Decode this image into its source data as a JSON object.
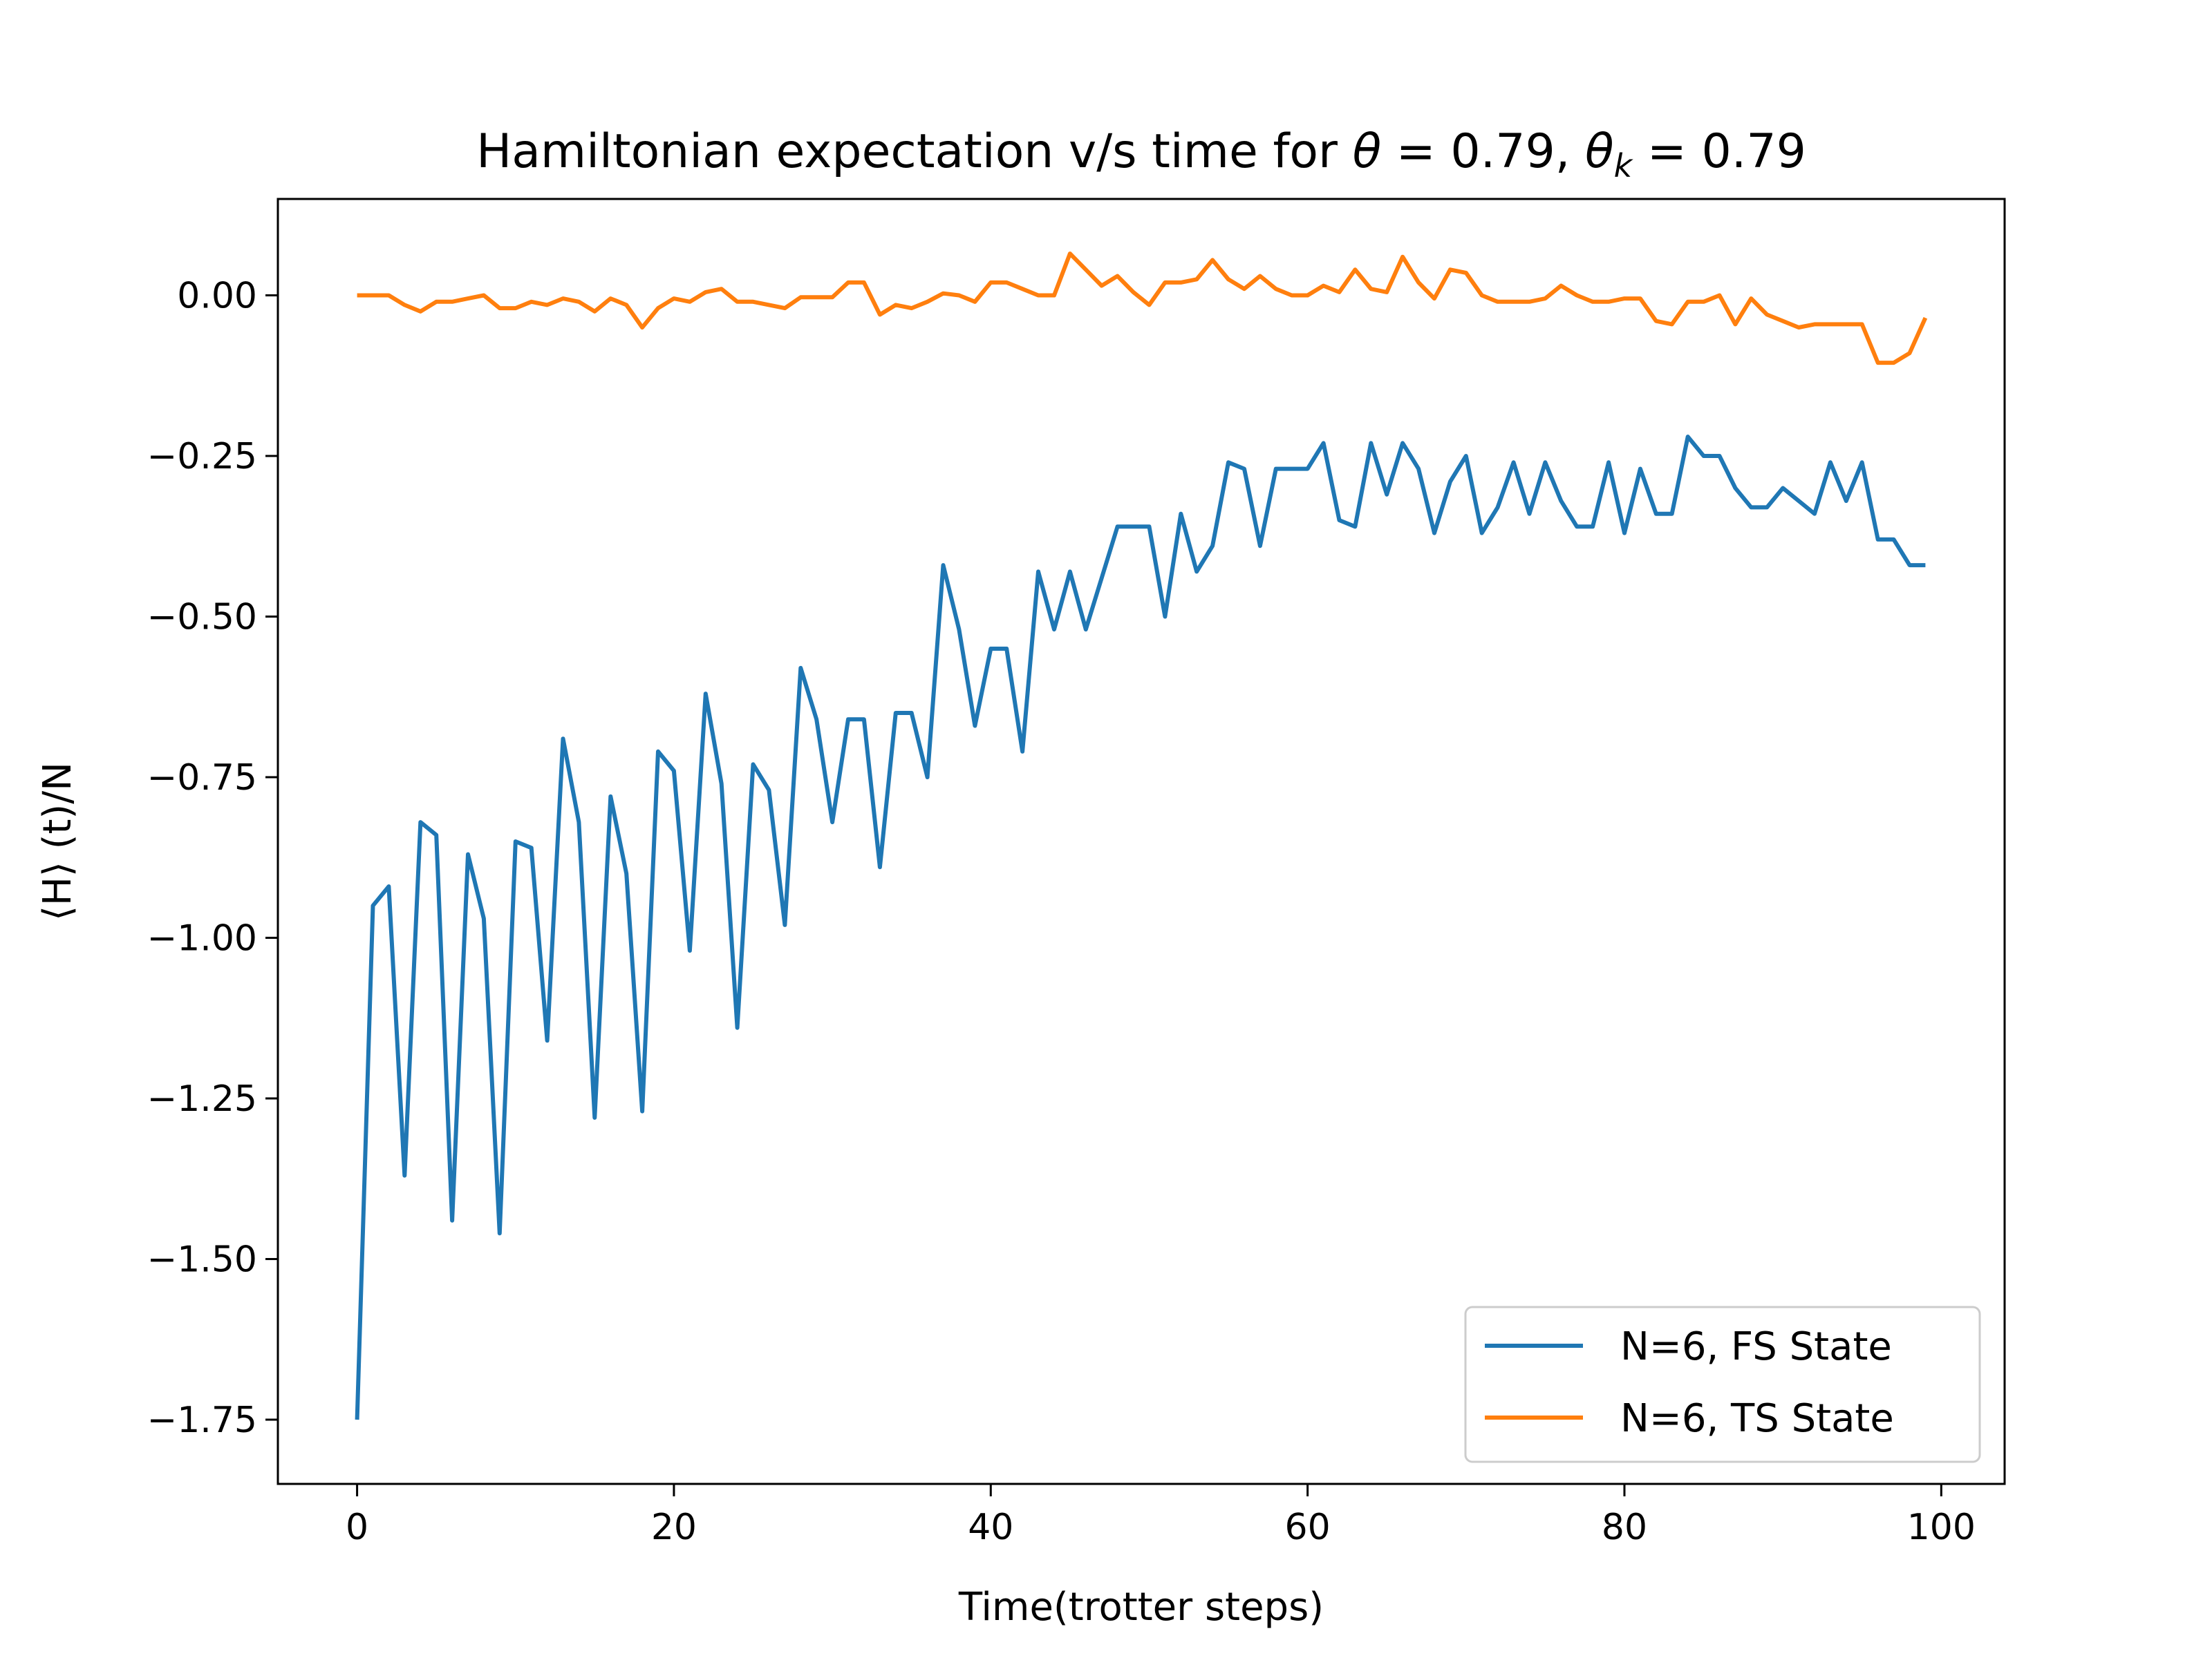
{
  "chart_data": {
    "type": "line",
    "title": "Hamiltonian expectation v/s time for θ = 0.79,  θk = 0.79",
    "title_parts": {
      "prefix": "Hamiltonian expectation v/s time for ",
      "theta": "θ",
      "eq1": " = 0.79,  ",
      "theta2": "θ",
      "subscript": "k",
      "eq2": " = 0.79"
    },
    "xlabel": "Time(trotter steps)",
    "ylabel": "⟨H⟩ (t)/N",
    "xlim": [
      -5,
      104
    ],
    "ylim": [
      -1.85,
      0.15
    ],
    "xticks": [
      0,
      20,
      40,
      60,
      80,
      100
    ],
    "yticks": [
      0.0,
      -0.25,
      -0.5,
      -0.75,
      -1.0,
      -1.25,
      -1.5,
      -1.75
    ],
    "ytick_labels": [
      "0.00",
      "−0.25",
      "−0.50",
      "−0.75",
      "−1.00",
      "−1.25",
      "−1.50",
      "−1.75"
    ],
    "xtick_labels": [
      "0",
      "20",
      "40",
      "60",
      "80",
      "100"
    ],
    "grid": false,
    "legend_position": "lower-right",
    "series": [
      {
        "name": "N=6, FS State",
        "color": "#1f77b4",
        "x": [
          0,
          1,
          2,
          3,
          4,
          5,
          6,
          7,
          8,
          9,
          10,
          11,
          12,
          13,
          14,
          15,
          16,
          17,
          18,
          19,
          20,
          21,
          22,
          23,
          24,
          25,
          26,
          27,
          28,
          29,
          30,
          31,
          32,
          33,
          34,
          35,
          36,
          37,
          38,
          39,
          40,
          41,
          42,
          43,
          44,
          45,
          46,
          47,
          48,
          49,
          50,
          51,
          52,
          53,
          54,
          55,
          56,
          57,
          58,
          59,
          60,
          61,
          62,
          63,
          64,
          65,
          66,
          67,
          68,
          69,
          70,
          71,
          72,
          73,
          74,
          75,
          76,
          77,
          78,
          79,
          80,
          81,
          82,
          83,
          84,
          85,
          86,
          87,
          88,
          89,
          90,
          91,
          92,
          93,
          94,
          95,
          96,
          97,
          98,
          99
        ],
        "values": [
          -1.75,
          -0.95,
          -0.92,
          -1.37,
          -0.82,
          -0.84,
          -1.44,
          -0.87,
          -0.97,
          -1.46,
          -0.85,
          -0.86,
          -1.16,
          -0.69,
          -0.82,
          -1.28,
          -0.78,
          -0.9,
          -1.27,
          -0.71,
          -0.74,
          -1.02,
          -0.62,
          -0.76,
          -1.14,
          -0.73,
          -0.77,
          -0.98,
          -0.58,
          -0.66,
          -0.82,
          -0.66,
          -0.66,
          -0.89,
          -0.65,
          -0.65,
          -0.75,
          -0.42,
          -0.52,
          -0.67,
          -0.55,
          -0.55,
          -0.71,
          -0.43,
          -0.52,
          -0.43,
          -0.52,
          -0.44,
          -0.36,
          -0.36,
          -0.36,
          -0.5,
          -0.34,
          -0.43,
          -0.39,
          -0.26,
          -0.27,
          -0.39,
          -0.27,
          -0.27,
          -0.27,
          -0.23,
          -0.35,
          -0.36,
          -0.23,
          -0.31,
          -0.23,
          -0.27,
          -0.37,
          -0.29,
          -0.25,
          -0.37,
          -0.33,
          -0.26,
          -0.34,
          -0.26,
          -0.32,
          -0.36,
          -0.36,
          -0.26,
          -0.37,
          -0.27,
          -0.34,
          -0.34,
          -0.22,
          -0.25,
          -0.25,
          -0.3,
          -0.33,
          -0.33,
          -0.3,
          -0.32,
          -0.34,
          -0.26,
          -0.32,
          -0.26,
          -0.38,
          -0.38,
          -0.42,
          -0.42
        ]
      },
      {
        "name": "N=6, TS State",
        "color": "#ff7f0e",
        "x": [
          0,
          1,
          2,
          3,
          4,
          5,
          6,
          7,
          8,
          9,
          10,
          11,
          12,
          13,
          14,
          15,
          16,
          17,
          18,
          19,
          20,
          21,
          22,
          23,
          24,
          25,
          26,
          27,
          28,
          29,
          30,
          31,
          32,
          33,
          34,
          35,
          36,
          37,
          38,
          39,
          40,
          41,
          42,
          43,
          44,
          45,
          46,
          47,
          48,
          49,
          50,
          51,
          52,
          53,
          54,
          55,
          56,
          57,
          58,
          59,
          60,
          61,
          62,
          63,
          64,
          65,
          66,
          67,
          68,
          69,
          70,
          71,
          72,
          73,
          74,
          75,
          76,
          77,
          78,
          79,
          80,
          81,
          82,
          83,
          84,
          85,
          86,
          87,
          88,
          89,
          90,
          91,
          92,
          93,
          94,
          95,
          96,
          97,
          98,
          99
        ],
        "values": [
          0.0,
          0.0,
          0.0,
          -0.015,
          -0.025,
          -0.01,
          -0.01,
          -0.005,
          0.0,
          -0.02,
          -0.02,
          -0.01,
          -0.015,
          -0.005,
          -0.01,
          -0.025,
          -0.005,
          -0.015,
          -0.05,
          -0.02,
          -0.005,
          -0.01,
          0.005,
          0.01,
          -0.01,
          -0.01,
          -0.015,
          -0.02,
          -0.003,
          -0.003,
          -0.003,
          0.02,
          0.02,
          -0.03,
          -0.015,
          -0.02,
          -0.01,
          0.003,
          0.0,
          -0.01,
          0.02,
          0.02,
          0.01,
          0.0,
          0.0,
          0.065,
          0.04,
          0.015,
          0.03,
          0.005,
          -0.015,
          0.02,
          0.02,
          0.025,
          0.055,
          0.025,
          0.01,
          0.03,
          0.01,
          0.0,
          0.0,
          0.015,
          0.005,
          0.04,
          0.01,
          0.005,
          0.06,
          0.02,
          -0.005,
          0.04,
          0.035,
          0.0,
          -0.01,
          -0.01,
          -0.01,
          -0.005,
          0.015,
          0.0,
          -0.01,
          -0.01,
          -0.005,
          -0.005,
          -0.04,
          -0.045,
          -0.01,
          -0.01,
          0.0,
          -0.045,
          -0.005,
          -0.03,
          -0.04,
          -0.05,
          -0.045,
          -0.045,
          -0.045,
          -0.045,
          -0.105,
          -0.105,
          -0.09,
          -0.035
        ]
      }
    ]
  }
}
